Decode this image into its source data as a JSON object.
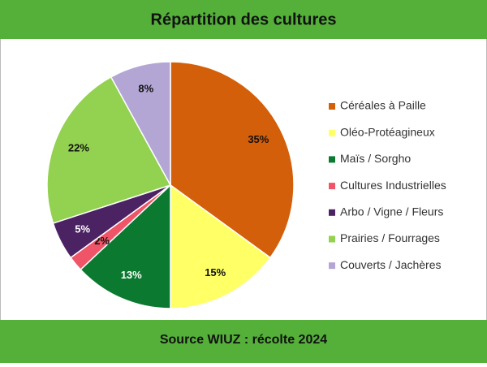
{
  "chart_data": {
    "type": "pie",
    "title": "Répartition des cultures",
    "footer": "Source WIUZ : récolte 2024",
    "categories": [
      "Céréales à Paille",
      "Oléo-Protéagineux",
      "Maïs / Sorgho",
      "Cultures Industrielles",
      "Arbo / Vigne / Fleurs",
      "Prairies / Fourrages",
      "Couverts / Jachères"
    ],
    "values": [
      35,
      15,
      13,
      2,
      5,
      22,
      8
    ],
    "value_labels": [
      "35%",
      "15%",
      "13%",
      "2%",
      "5%",
      "22%",
      "8%"
    ],
    "colors": [
      "#d45f0a",
      "#ffff66",
      "#0b7a30",
      "#ef5468",
      "#4b2363",
      "#93d150",
      "#b3a5d4"
    ],
    "legend": "right"
  }
}
